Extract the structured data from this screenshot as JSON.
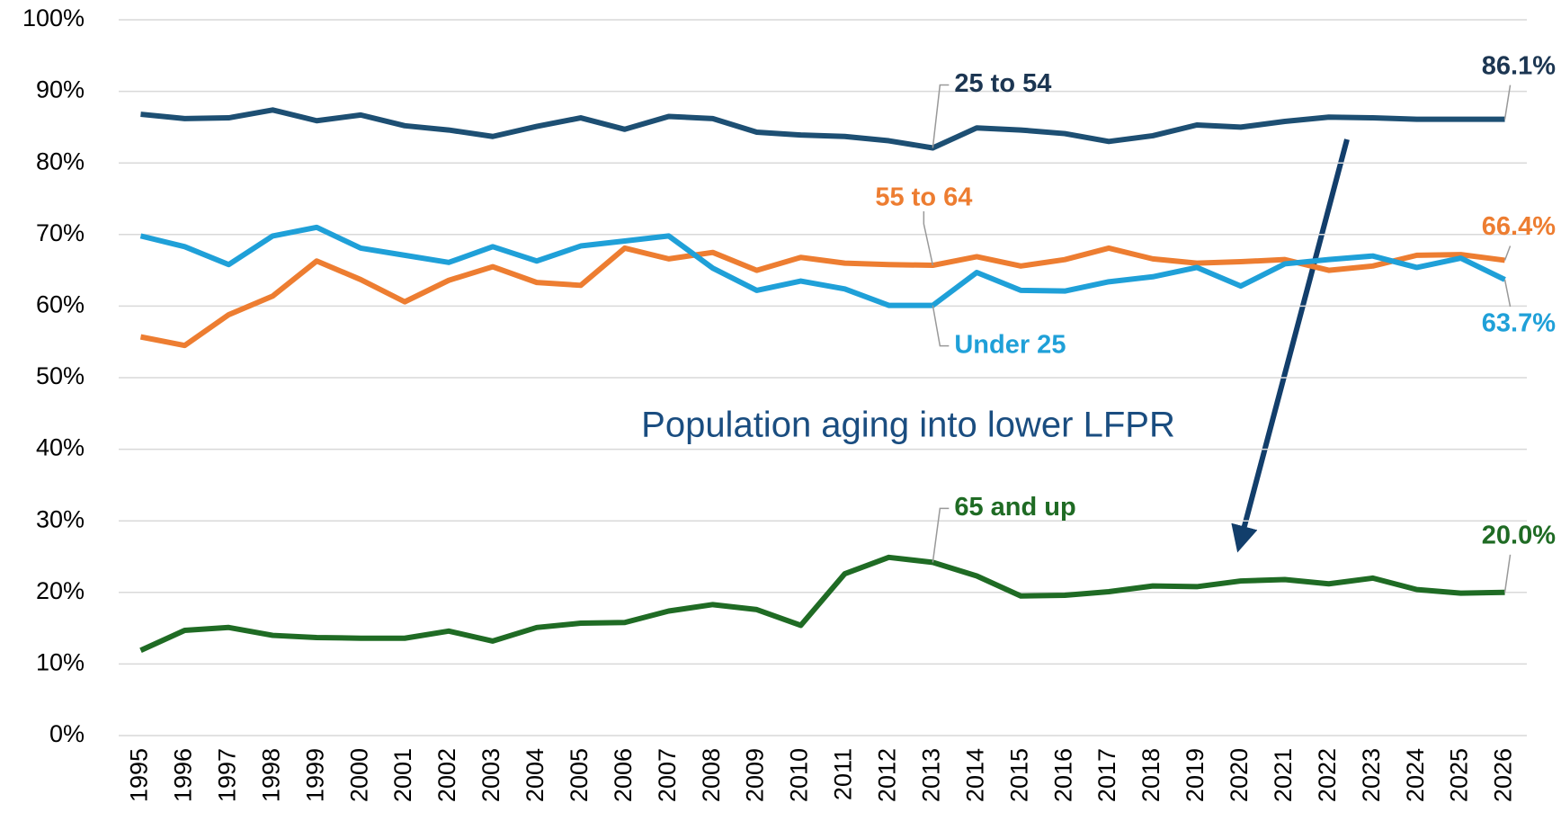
{
  "chart_data": {
    "type": "line",
    "categories": [
      "1995",
      "1996",
      "1997",
      "1998",
      "1999",
      "2000",
      "2001",
      "2002",
      "2003",
      "2004",
      "2005",
      "2006",
      "2007",
      "2008",
      "2009",
      "2010",
      "2011",
      "2012",
      "2013",
      "2014",
      "2015",
      "2016",
      "2017",
      "2018",
      "2019",
      "2020",
      "2021",
      "2022",
      "2023",
      "2024",
      "2025",
      "2026"
    ],
    "series": [
      {
        "name": "25 to 54",
        "color": "#1d4f73",
        "label_color": "#1c3652",
        "values": [
          86.8,
          86.2,
          86.3,
          87.4,
          85.9,
          86.7,
          85.2,
          84.6,
          83.7,
          85.1,
          86.3,
          84.7,
          86.5,
          86.2,
          84.3,
          83.9,
          83.7,
          83.1,
          82.1,
          84.9,
          84.6,
          84.1,
          83.0,
          83.8,
          85.3,
          85.0,
          85.8,
          86.4,
          86.3,
          86.1,
          86.1,
          86.1
        ],
        "value_labels": [
          null,
          null,
          null,
          null,
          null,
          null,
          null,
          null,
          null,
          null,
          null,
          null,
          null,
          null,
          null,
          null,
          null,
          null,
          null,
          null,
          null,
          null,
          null,
          null,
          null,
          null,
          null,
          null,
          null,
          null,
          null,
          "86.1%"
        ]
      },
      {
        "name": "55 to 64",
        "color": "#ed7d31",
        "label_color": "#ed7d31",
        "values": [
          55.7,
          54.5,
          58.8,
          61.4,
          66.3,
          63.7,
          60.6,
          63.6,
          65.5,
          63.3,
          62.9,
          68.1,
          66.6,
          67.5,
          65.0,
          66.8,
          66.0,
          65.8,
          65.7,
          66.9,
          65.6,
          66.5,
          68.1,
          66.6,
          66.0,
          66.2,
          66.5,
          65.0,
          65.6,
          67.1,
          67.2,
          66.4
        ],
        "value_labels": [
          null,
          null,
          null,
          null,
          null,
          null,
          null,
          null,
          null,
          null,
          null,
          null,
          null,
          null,
          null,
          null,
          null,
          null,
          null,
          null,
          null,
          null,
          null,
          null,
          null,
          null,
          null,
          null,
          null,
          null,
          null,
          "66.4%"
        ]
      },
      {
        "name": "Under 25",
        "color": "#1fa0d8",
        "label_color": "#1fa0d8",
        "values": [
          69.8,
          68.3,
          65.8,
          69.8,
          71.0,
          68.1,
          67.1,
          66.1,
          68.3,
          66.3,
          68.4,
          69.1,
          69.8,
          65.3,
          62.2,
          63.5,
          62.4,
          60.1,
          60.1,
          64.7,
          62.2,
          62.1,
          63.4,
          64.1,
          65.4,
          62.8,
          65.9,
          66.5,
          67.0,
          65.4,
          66.7,
          63.7
        ],
        "value_labels": [
          null,
          null,
          null,
          null,
          null,
          null,
          null,
          null,
          null,
          null,
          null,
          null,
          null,
          null,
          null,
          null,
          null,
          null,
          null,
          null,
          null,
          null,
          null,
          null,
          null,
          null,
          null,
          null,
          null,
          null,
          null,
          "63.7%"
        ]
      },
      {
        "name": "65 and up",
        "color": "#1f6b24",
        "label_color": "#1f6b24",
        "values": [
          11.9,
          14.7,
          15.1,
          14.0,
          13.7,
          13.6,
          13.6,
          14.6,
          13.2,
          15.1,
          15.7,
          15.8,
          17.4,
          18.3,
          17.6,
          15.4,
          22.6,
          24.9,
          24.2,
          22.3,
          19.5,
          19.6,
          20.1,
          20.9,
          20.8,
          21.6,
          21.8,
          21.2,
          22.0,
          20.4,
          19.9,
          20.0
        ],
        "value_labels": [
          null,
          null,
          null,
          null,
          null,
          null,
          null,
          null,
          null,
          null,
          null,
          null,
          null,
          null,
          null,
          null,
          null,
          null,
          null,
          null,
          null,
          null,
          null,
          null,
          null,
          null,
          null,
          null,
          null,
          null,
          null,
          "20.0%"
        ]
      }
    ],
    "ylim": [
      0,
      100
    ],
    "yticks": [
      {
        "value": 0,
        "label": "0%"
      },
      {
        "value": 10,
        "label": "10%"
      },
      {
        "value": 20,
        "label": "20%"
      },
      {
        "value": 30,
        "label": "30%"
      },
      {
        "value": 40,
        "label": "40%"
      },
      {
        "value": 50,
        "label": "50%"
      },
      {
        "value": 60,
        "label": "60%"
      },
      {
        "value": 70,
        "label": "70%"
      },
      {
        "value": 80,
        "label": "80%"
      },
      {
        "value": 90,
        "label": "90%"
      },
      {
        "value": 100,
        "label": "100%"
      }
    ],
    "grid": true,
    "annotations": [
      "Population aging into lower LFPR"
    ]
  }
}
